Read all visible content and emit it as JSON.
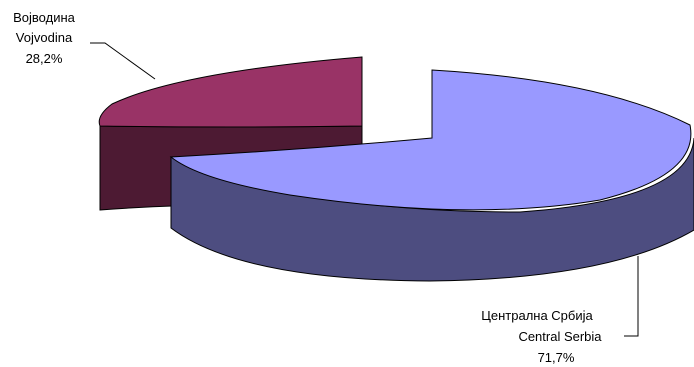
{
  "chart_data": {
    "type": "pie",
    "slices": [
      {
        "label_line1": "Централна Србија",
        "label_line2": "Central Serbia",
        "value_text": "71,7%",
        "value": 71.7,
        "color": "#9999ff"
      },
      {
        "label_line1": "Војводина",
        "label_line2": "Vojvodina",
        "value_text": "28,2%",
        "value": 28.2,
        "color": "#993366"
      }
    ],
    "three_d": true,
    "exploded": true,
    "legend": "none"
  }
}
